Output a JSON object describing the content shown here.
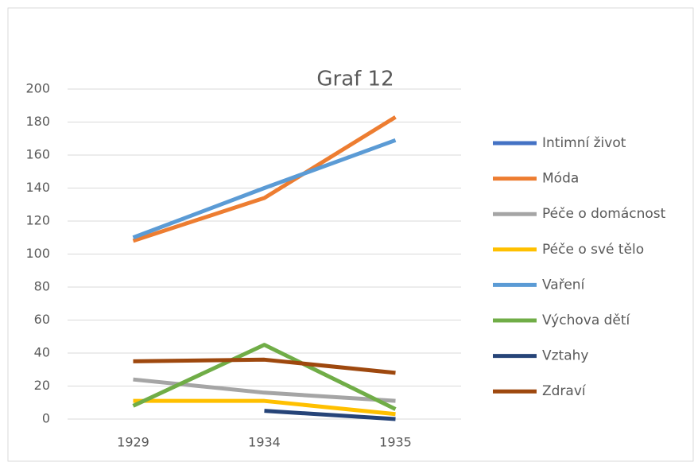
{
  "chart_data": {
    "type": "line",
    "title": "Graf 12",
    "categories": [
      "1929",
      "1934",
      "1935"
    ],
    "series": [
      {
        "name": "Intimní život",
        "color": "#4472c4",
        "values": [
          null,
          null,
          null
        ]
      },
      {
        "name": "Móda",
        "color": "#ed7d31",
        "values": [
          108,
          134,
          183
        ]
      },
      {
        "name": "Péče o domácnost",
        "color": "#a5a5a5",
        "values": [
          24,
          16,
          11
        ]
      },
      {
        "name": "Péče o své tělo",
        "color": "#ffc000",
        "values": [
          11,
          11,
          3
        ]
      },
      {
        "name": "Vaření",
        "color": "#5b9bd5",
        "values": [
          110,
          140,
          169
        ]
      },
      {
        "name": "Výchova dětí",
        "color": "#70ad47",
        "values": [
          8,
          45,
          6
        ]
      },
      {
        "name": "Vztahy",
        "color": "#264478",
        "values": [
          null,
          5,
          0
        ]
      },
      {
        "name": "Zdraví",
        "color": "#9e480e",
        "values": [
          35,
          36,
          28
        ]
      }
    ],
    "ylim": [
      0,
      200
    ],
    "yticks": [
      0,
      20,
      40,
      60,
      80,
      100,
      120,
      140,
      160,
      180,
      200
    ],
    "grid": true,
    "legend": "right"
  }
}
